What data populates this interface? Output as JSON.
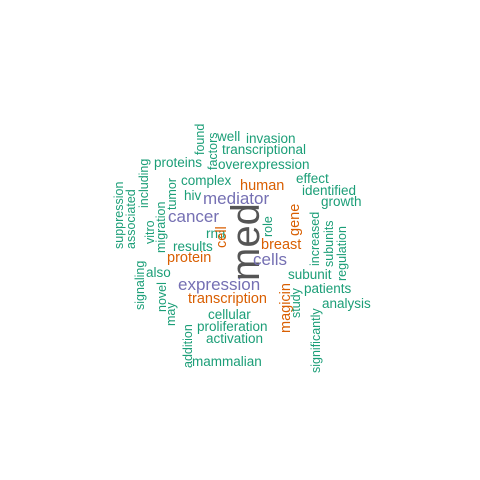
{
  "palette": {
    "green": "#1b9e77",
    "orange": "#d95f02",
    "purple": "#7570b3",
    "gray": "#555555"
  },
  "words": [
    {
      "id": "med",
      "text": "med",
      "color": "#555555"
    },
    {
      "id": "cells",
      "text": "cells",
      "color": "#7570b3"
    },
    {
      "id": "expression",
      "text": "expression",
      "color": "#7570b3"
    },
    {
      "id": "mediator",
      "text": "mediator",
      "color": "#7570b3"
    },
    {
      "id": "cancer",
      "text": "cancer",
      "color": "#7570b3"
    },
    {
      "id": "breast",
      "text": "breast",
      "color": "#d95f02"
    },
    {
      "id": "transcription",
      "text": "transcription",
      "color": "#d95f02"
    },
    {
      "id": "protein",
      "text": "protein",
      "color": "#d95f02"
    },
    {
      "id": "human",
      "text": "human",
      "color": "#d95f02"
    },
    {
      "id": "cell",
      "text": "cell",
      "color": "#d95f02"
    },
    {
      "id": "gene",
      "text": "gene",
      "color": "#d95f02"
    },
    {
      "id": "magicin",
      "text": "magicin",
      "color": "#d95f02"
    },
    {
      "id": "well",
      "text": "well",
      "color": "#1b9e77"
    },
    {
      "id": "invasion",
      "text": "invasion",
      "color": "#1b9e77"
    },
    {
      "id": "transcriptional",
      "text": "transcriptional",
      "color": "#1b9e77"
    },
    {
      "id": "proteins",
      "text": "proteins",
      "color": "#1b9e77"
    },
    {
      "id": "overexpression",
      "text": "overexpression",
      "color": "#1b9e77"
    },
    {
      "id": "complex",
      "text": "complex",
      "color": "#1b9e77"
    },
    {
      "id": "effect",
      "text": "effect",
      "color": "#1b9e77"
    },
    {
      "id": "identified",
      "text": "identified",
      "color": "#1b9e77"
    },
    {
      "id": "hiv",
      "text": "hiv",
      "color": "#1b9e77"
    },
    {
      "id": "growth",
      "text": "growth",
      "color": "#1b9e77"
    },
    {
      "id": "rna",
      "text": "rna",
      "color": "#1b9e77"
    },
    {
      "id": "results",
      "text": "results",
      "color": "#1b9e77"
    },
    {
      "id": "also",
      "text": "also",
      "color": "#1b9e77"
    },
    {
      "id": "subunit",
      "text": "subunit",
      "color": "#1b9e77"
    },
    {
      "id": "patients",
      "text": "patients",
      "color": "#1b9e77"
    },
    {
      "id": "analysis",
      "text": "analysis",
      "color": "#1b9e77"
    },
    {
      "id": "cellular",
      "text": "cellular",
      "color": "#1b9e77"
    },
    {
      "id": "proliferation",
      "text": "proliferation",
      "color": "#1b9e77"
    },
    {
      "id": "activation",
      "text": "activation",
      "color": "#1b9e77"
    },
    {
      "id": "mammalian",
      "text": "mammalian",
      "color": "#1b9e77"
    },
    {
      "id": "found",
      "text": "found",
      "color": "#1b9e77"
    },
    {
      "id": "factors",
      "text": "factors",
      "color": "#1b9e77"
    },
    {
      "id": "tumor",
      "text": "tumor",
      "color": "#1b9e77"
    },
    {
      "id": "including",
      "text": "including",
      "color": "#1b9e77"
    },
    {
      "id": "suppression",
      "text": "suppression",
      "color": "#1b9e77"
    },
    {
      "id": "associated",
      "text": "associated",
      "color": "#1b9e77"
    },
    {
      "id": "vitro",
      "text": "vitro",
      "color": "#1b9e77"
    },
    {
      "id": "migration",
      "text": "migration",
      "color": "#1b9e77"
    },
    {
      "id": "signaling",
      "text": "signaling",
      "color": "#1b9e77"
    },
    {
      "id": "novel",
      "text": "novel",
      "color": "#1b9e77"
    },
    {
      "id": "may",
      "text": "may",
      "color": "#1b9e77"
    },
    {
      "id": "addition",
      "text": "addition",
      "color": "#1b9e77"
    },
    {
      "id": "role",
      "text": "role",
      "color": "#1b9e77"
    },
    {
      "id": "increased",
      "text": "increased",
      "color": "#1b9e77"
    },
    {
      "id": "subunits",
      "text": "subunits",
      "color": "#1b9e77"
    },
    {
      "id": "regulation",
      "text": "regulation",
      "color": "#1b9e77"
    },
    {
      "id": "study",
      "text": "study",
      "color": "#1b9e77"
    },
    {
      "id": "significantly",
      "text": "significantly",
      "color": "#1b9e77"
    }
  ]
}
